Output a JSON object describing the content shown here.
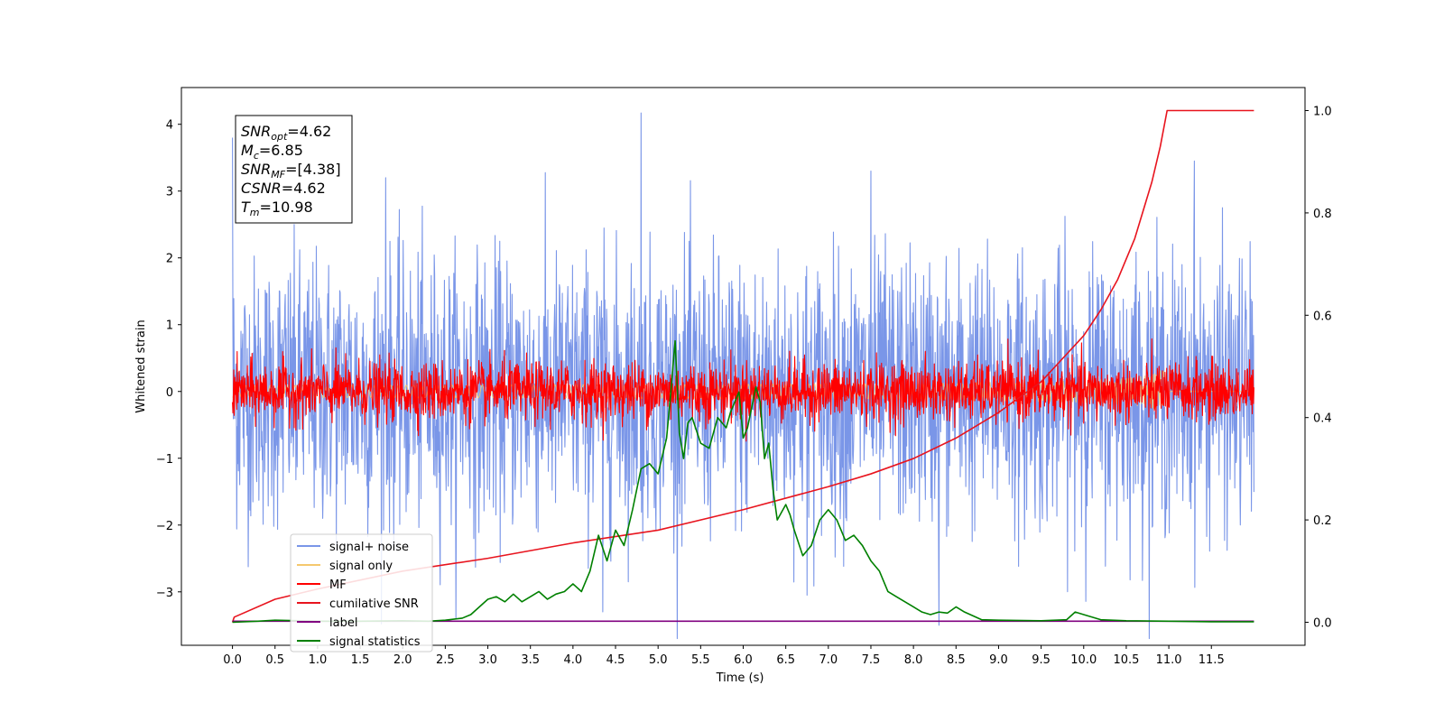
{
  "chart_data": {
    "type": "line",
    "xlabel": "Time (s)",
    "ylabel": "Whitened strain",
    "xlim": [
      -0.6,
      12.6
    ],
    "ylim": [
      -3.8,
      4.55
    ],
    "y2lim": [
      -0.045,
      1.045
    ],
    "x_ticks": [
      "0.0",
      "0.5",
      "1.0",
      "1.5",
      "2.0",
      "2.5",
      "3.0",
      "3.5",
      "4.0",
      "4.5",
      "5.0",
      "5.5",
      "6.0",
      "6.5",
      "7.0",
      "7.5",
      "8.0",
      "8.5",
      "9.0",
      "9.5",
      "10.0",
      "10.5",
      "11.0",
      "11.5"
    ],
    "y_ticks": [
      -3,
      -2,
      -1,
      0,
      1,
      2,
      3,
      4
    ],
    "y_tick_labels": [
      "−3",
      "−2",
      "−1",
      "0",
      "1",
      "2",
      "3",
      "4"
    ],
    "y2_ticks": [
      "0.0",
      "0.2",
      "0.4",
      "0.6",
      "0.8",
      "1.0"
    ],
    "annotation": {
      "lines": [
        {
          "var": "SNR",
          "sub": "opt",
          "value": "=4.62"
        },
        {
          "var": "M",
          "sub": "c",
          "value": "=6.85"
        },
        {
          "var": "SNR",
          "sub": "MF",
          "value": "=[4.38]"
        },
        {
          "var": "CSNR",
          "sub": "",
          "value": "=4.62"
        },
        {
          "var": "T",
          "sub": "m",
          "value": "=10.98"
        }
      ]
    },
    "legend_placement": "lower-left",
    "series": [
      {
        "name": "signal+ noise",
        "color": "#7a96e8",
        "axis": "left",
        "kind": "noise",
        "amplitude": 1.0,
        "spikes": [
          [
            0.0,
            3.8
          ],
          [
            4.8,
            4.17
          ],
          [
            7.5,
            3.3
          ],
          [
            11.3,
            3.45
          ],
          [
            1.8,
            3.2
          ],
          [
            8.3,
            -3.5
          ],
          [
            4.35,
            -3.3
          ],
          [
            6.75,
            -3.05
          ]
        ]
      },
      {
        "name": "signal only",
        "color": "#f5c86e",
        "axis": "left",
        "kind": "chirp",
        "t_merge": 10.98,
        "peak": 0.35
      },
      {
        "name": "MF",
        "color": "#ff0000",
        "axis": "left",
        "kind": "noise",
        "amplitude": 0.22
      },
      {
        "name": "cumilative SNR",
        "color": "#e8141e",
        "axis": "right",
        "x": [
          0.0,
          0.02,
          0.5,
          1.0,
          2.0,
          3.0,
          4.0,
          5.0,
          6.0,
          7.0,
          7.5,
          8.0,
          8.5,
          9.0,
          9.5,
          10.0,
          10.2,
          10.4,
          10.6,
          10.8,
          10.9,
          10.98,
          12.0
        ],
        "y": [
          0.0,
          0.01,
          0.045,
          0.065,
          0.1,
          0.125,
          0.155,
          0.18,
          0.22,
          0.265,
          0.29,
          0.32,
          0.36,
          0.41,
          0.47,
          0.56,
          0.61,
          0.67,
          0.75,
          0.86,
          0.93,
          1.0,
          1.0
        ]
      },
      {
        "name": "label",
        "color": "#800080",
        "axis": "right",
        "x": [
          0.0,
          12.0
        ],
        "y": [
          0.002,
          0.002
        ]
      },
      {
        "name": "signal statistics",
        "color": "#008000",
        "axis": "right",
        "x": [
          0.0,
          0.3,
          0.5,
          0.8,
          1.0,
          1.5,
          2.0,
          2.3,
          2.5,
          2.7,
          2.8,
          2.9,
          3.0,
          3.1,
          3.2,
          3.3,
          3.4,
          3.5,
          3.6,
          3.7,
          3.8,
          3.9,
          4.0,
          4.1,
          4.2,
          4.3,
          4.4,
          4.5,
          4.6,
          4.7,
          4.8,
          4.9,
          5.0,
          5.1,
          5.15,
          5.2,
          5.25,
          5.3,
          5.35,
          5.4,
          5.5,
          5.6,
          5.7,
          5.8,
          5.85,
          5.9,
          5.95,
          6.0,
          6.05,
          6.1,
          6.15,
          6.2,
          6.25,
          6.3,
          6.35,
          6.4,
          6.5,
          6.55,
          6.6,
          6.7,
          6.8,
          6.9,
          7.0,
          7.1,
          7.2,
          7.3,
          7.4,
          7.5,
          7.6,
          7.7,
          7.8,
          7.9,
          8.0,
          8.1,
          8.2,
          8.3,
          8.4,
          8.5,
          8.6,
          8.8,
          9.0,
          9.5,
          9.8,
          9.9,
          10.0,
          10.2,
          10.5,
          11.0,
          11.5,
          12.0
        ],
        "y": [
          0.0,
          0.002,
          0.004,
          0.003,
          0.002,
          0.002,
          0.003,
          0.002,
          0.004,
          0.008,
          0.015,
          0.03,
          0.045,
          0.05,
          0.04,
          0.055,
          0.04,
          0.05,
          0.06,
          0.045,
          0.055,
          0.06,
          0.075,
          0.06,
          0.1,
          0.17,
          0.12,
          0.18,
          0.15,
          0.22,
          0.3,
          0.31,
          0.29,
          0.36,
          0.45,
          0.55,
          0.37,
          0.32,
          0.39,
          0.4,
          0.35,
          0.34,
          0.4,
          0.38,
          0.41,
          0.43,
          0.45,
          0.36,
          0.38,
          0.42,
          0.46,
          0.43,
          0.32,
          0.35,
          0.26,
          0.2,
          0.23,
          0.21,
          0.18,
          0.13,
          0.15,
          0.2,
          0.22,
          0.2,
          0.16,
          0.17,
          0.15,
          0.12,
          0.1,
          0.06,
          0.05,
          0.04,
          0.03,
          0.02,
          0.015,
          0.02,
          0.018,
          0.03,
          0.02,
          0.005,
          0.004,
          0.003,
          0.005,
          0.02,
          0.015,
          0.005,
          0.003,
          0.002,
          0.001,
          0.001
        ]
      }
    ]
  }
}
